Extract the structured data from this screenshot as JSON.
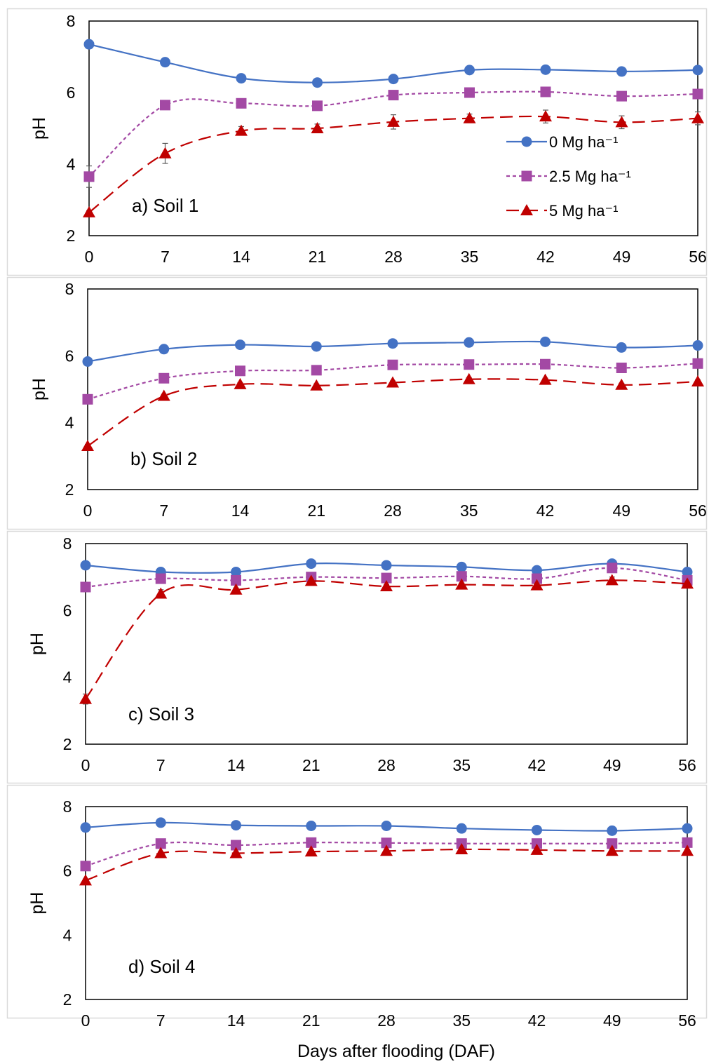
{
  "colors": {
    "series_0": "#4472C4",
    "series_2_5": "#A349A4",
    "series_5": "#C00000",
    "axis": "#000000",
    "panel_border": "#D9D9D9",
    "error_bar": "#595959"
  },
  "x_axis_label": "Days after flooding (DAF)",
  "legend": {
    "placement": "inside panel a, right",
    "items": [
      "0 Mg ha⁻¹",
      "2.5 Mg ha⁻¹",
      "5 Mg ha⁻¹"
    ]
  },
  "chart_data": [
    {
      "type": "line",
      "title": "a) Soil 1",
      "xlabel": "",
      "ylabel": "pH",
      "x": [
        0,
        7,
        14,
        21,
        28,
        35,
        42,
        49,
        56
      ],
      "xlim": [
        0,
        56
      ],
      "ylim": [
        2,
        8
      ],
      "yticks": [
        2,
        4,
        6,
        8
      ],
      "grid": false,
      "series": [
        {
          "name": "0 Mg ha⁻¹",
          "marker": "circle",
          "dash": "solid",
          "values": [
            7.35,
            6.85,
            6.4,
            6.28,
            6.38,
            6.63,
            6.64,
            6.59,
            6.63
          ],
          "err": [
            0,
            0,
            0,
            0,
            0,
            0,
            0,
            0,
            0
          ]
        },
        {
          "name": "2.5 Mg ha⁻¹",
          "marker": "square",
          "dash": "short",
          "values": [
            3.65,
            5.65,
            5.7,
            5.63,
            5.93,
            6.0,
            6.02,
            5.9,
            5.96
          ],
          "err": [
            0.3,
            0.05,
            0.05,
            0.05,
            0.05,
            0.05,
            0.05,
            0.05,
            0.05
          ]
        },
        {
          "name": "5 Mg ha⁻¹",
          "marker": "triangle",
          "dash": "long",
          "values": [
            2.65,
            4.3,
            4.93,
            5.0,
            5.18,
            5.28,
            5.33,
            5.17,
            5.28
          ],
          "err": [
            0.05,
            0.28,
            0.12,
            0.12,
            0.2,
            0.12,
            0.18,
            0.18,
            0.18
          ]
        }
      ]
    },
    {
      "type": "line",
      "title": "b) Soil 2",
      "xlabel": "",
      "ylabel": "pH",
      "x": [
        0,
        7,
        14,
        21,
        28,
        35,
        42,
        49,
        56
      ],
      "xlim": [
        0,
        56
      ],
      "ylim": [
        2,
        8
      ],
      "yticks": [
        2,
        4,
        6,
        8
      ],
      "grid": false,
      "series": [
        {
          "name": "0 Mg ha⁻¹",
          "marker": "circle",
          "dash": "solid",
          "values": [
            5.83,
            6.2,
            6.33,
            6.28,
            6.37,
            6.4,
            6.42,
            6.25,
            6.31
          ],
          "err": [
            0,
            0,
            0,
            0,
            0,
            0,
            0,
            0,
            0
          ]
        },
        {
          "name": "2.5 Mg ha⁻¹",
          "marker": "square",
          "dash": "short",
          "values": [
            4.7,
            5.33,
            5.55,
            5.57,
            5.73,
            5.74,
            5.75,
            5.64,
            5.77
          ],
          "err": [
            0.05,
            0.05,
            0.05,
            0.05,
            0.05,
            0.05,
            0.05,
            0.05,
            0.05
          ]
        },
        {
          "name": "5 Mg ha⁻¹",
          "marker": "triangle",
          "dash": "long",
          "values": [
            3.3,
            4.8,
            5.15,
            5.11,
            5.2,
            5.3,
            5.28,
            5.13,
            5.23
          ],
          "err": [
            0.05,
            0.05,
            0.05,
            0.05,
            0.05,
            0.05,
            0.05,
            0.05,
            0.05
          ]
        }
      ]
    },
    {
      "type": "line",
      "title": "c) Soil 3",
      "xlabel": "",
      "ylabel": "pH",
      "x": [
        0,
        7,
        14,
        21,
        28,
        35,
        42,
        49,
        56
      ],
      "xlim": [
        0,
        56
      ],
      "ylim": [
        2,
        8
      ],
      "yticks": [
        2,
        4,
        6,
        8
      ],
      "grid": false,
      "series": [
        {
          "name": "0 Mg ha⁻¹",
          "marker": "circle",
          "dash": "solid",
          "values": [
            7.35,
            7.15,
            7.15,
            7.4,
            7.35,
            7.3,
            7.2,
            7.4,
            7.15
          ],
          "err": [
            0,
            0,
            0,
            0,
            0,
            0,
            0,
            0,
            0
          ]
        },
        {
          "name": "2.5 Mg ha⁻¹",
          "marker": "square",
          "dash": "short",
          "values": [
            6.7,
            6.95,
            6.9,
            7.0,
            6.97,
            7.02,
            6.95,
            7.27,
            6.9
          ],
          "err": [
            0.05,
            0.05,
            0.05,
            0.05,
            0.05,
            0.05,
            0.05,
            0.05,
            0.05
          ]
        },
        {
          "name": "5 Mg ha⁻¹",
          "marker": "triangle",
          "dash": "long",
          "values": [
            3.35,
            6.5,
            6.62,
            6.88,
            6.72,
            6.77,
            6.75,
            6.9,
            6.8
          ],
          "err": [
            0.15,
            0.12,
            0.05,
            0.05,
            0.05,
            0.05,
            0.05,
            0.1,
            0.05
          ]
        }
      ]
    },
    {
      "type": "line",
      "title": "d) Soil 4",
      "xlabel": "Days after flooding (DAF)",
      "ylabel": "pH",
      "x": [
        0,
        7,
        14,
        21,
        28,
        35,
        42,
        49,
        56
      ],
      "xlim": [
        0,
        56
      ],
      "ylim": [
        2,
        8
      ],
      "yticks": [
        2,
        4,
        6,
        8
      ],
      "grid": false,
      "series": [
        {
          "name": "0 Mg ha⁻¹",
          "marker": "circle",
          "dash": "solid",
          "values": [
            7.35,
            7.5,
            7.42,
            7.4,
            7.4,
            7.32,
            7.27,
            7.25,
            7.32
          ],
          "err": [
            0,
            0,
            0,
            0,
            0,
            0,
            0,
            0,
            0
          ]
        },
        {
          "name": "2.5 Mg ha⁻¹",
          "marker": "square",
          "dash": "short",
          "values": [
            6.15,
            6.85,
            6.8,
            6.88,
            6.87,
            6.85,
            6.85,
            6.85,
            6.88
          ],
          "err": [
            0.05,
            0.05,
            0.05,
            0.05,
            0.05,
            0.05,
            0.05,
            0.05,
            0.05
          ]
        },
        {
          "name": "5 Mg ha⁻¹",
          "marker": "triangle",
          "dash": "long",
          "values": [
            5.7,
            6.55,
            6.55,
            6.6,
            6.62,
            6.67,
            6.65,
            6.62,
            6.62
          ],
          "err": [
            0.05,
            0.05,
            0.05,
            0.05,
            0.05,
            0.05,
            0.05,
            0.05,
            0.05
          ]
        }
      ]
    }
  ]
}
